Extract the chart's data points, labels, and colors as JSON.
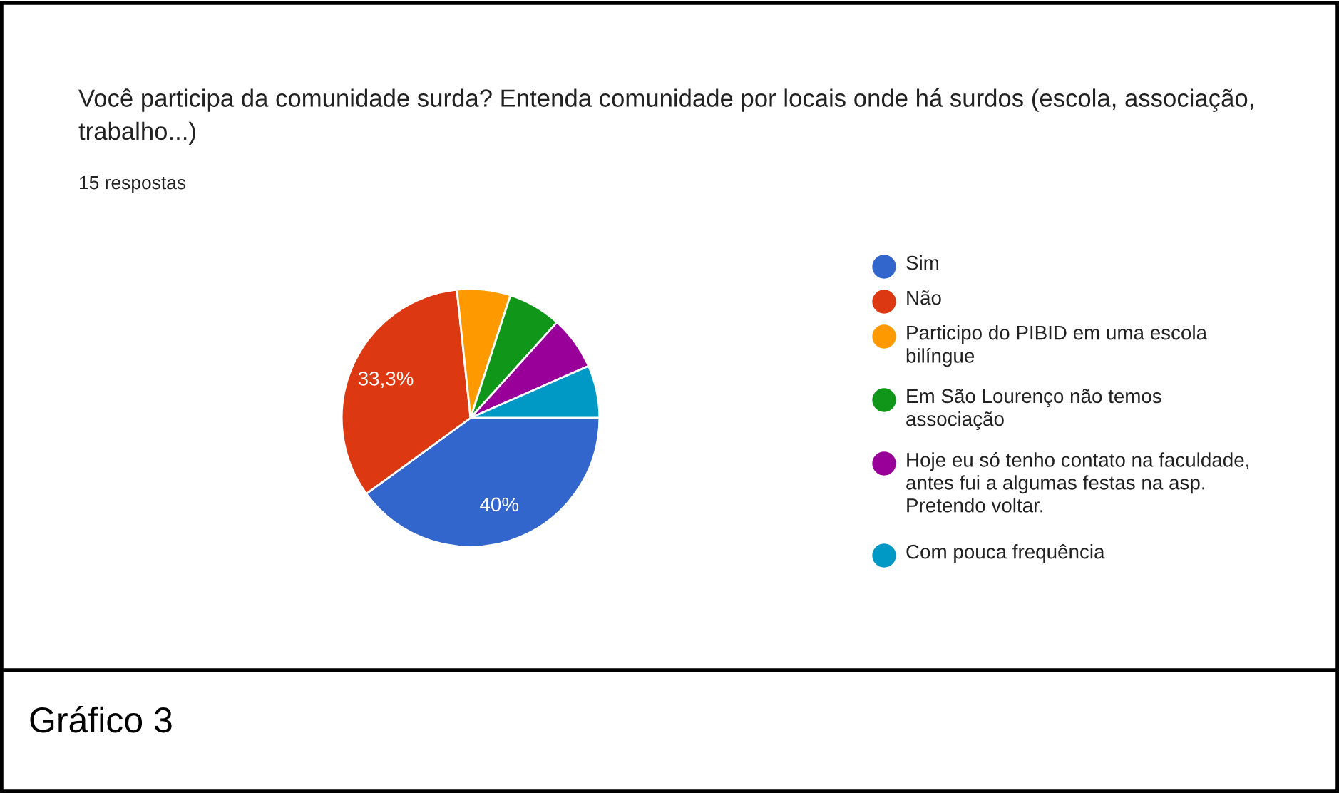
{
  "chart_data": {
    "type": "pie",
    "title": "Você participa da comunidade surda? Entenda comunidade por locais onde há surdos (escola, associação, trabalho...)",
    "subtitle": "15 respostas",
    "annotations": [
      "Gráfico 3"
    ],
    "categories": [
      "Sim",
      "Não",
      "Participo do PIBID em uma escola bilíngue",
      "Em São Lourenço não temos associação",
      "Hoje eu só tenho contato na faculdade, antes fui a algumas festas na asp. Pretendo voltar.",
      "Com pouca frequência"
    ],
    "values": [
      40,
      33.3,
      6.7,
      6.7,
      6.7,
      6.6
    ],
    "colors": [
      "#3366cc",
      "#dc3912",
      "#ff9900",
      "#109618",
      "#990099",
      "#0099c6"
    ],
    "value_labels": [
      "40%",
      "33,3%",
      null,
      null,
      null,
      null
    ],
    "legend": "right"
  }
}
